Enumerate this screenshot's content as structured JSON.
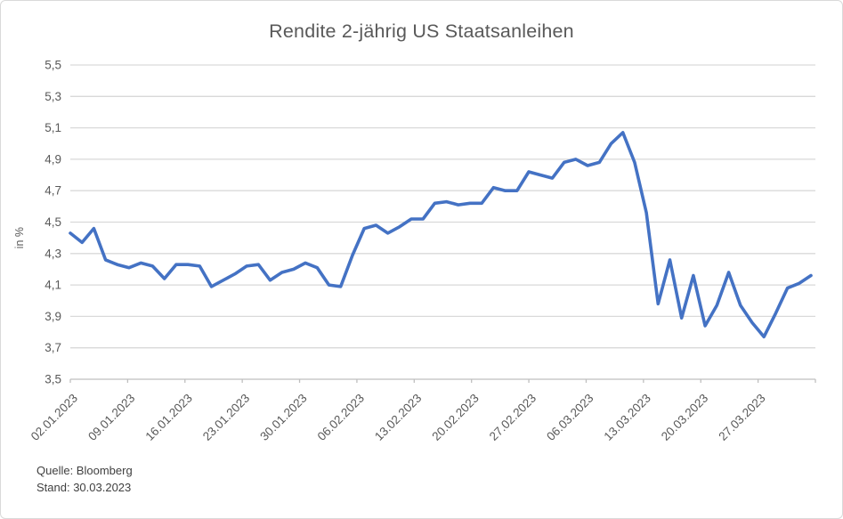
{
  "chart": {
    "title": "Rendite 2-jährig US Staatsanleihen",
    "source": "Quelle: Bloomberg",
    "stand": "Stand: 30.03.2023"
  },
  "chart_data": {
    "type": "line",
    "title": "Rendite 2-jährig US Staatsanleihen",
    "xlabel": "",
    "ylabel": "in %",
    "ylim": [
      3.5,
      5.5
    ],
    "ytick_step": 0.2,
    "ytick_labels": [
      "5,5",
      "5,3",
      "5,1",
      "4,9",
      "4,7",
      "4,5",
      "4,3",
      "4,1",
      "3,9",
      "3,7",
      "3,5"
    ],
    "xtick_labels": [
      "02.01.2023",
      "09.01.2023",
      "16.01.2023",
      "23.01.2023",
      "30.01.2023",
      "06.02.2023",
      "13.02.2023",
      "20.02.2023",
      "27.02.2023",
      "06.03.2023",
      "13.03.2023",
      "20.03.2023",
      "27.03.2023"
    ],
    "grid": true,
    "legend": false,
    "line_color": "#4472C4",
    "grid_color": "#d9d9d9",
    "axis_color": "#bfbfbf",
    "label_color": "#595959",
    "x": [
      "02.01.2023",
      "03.01.2023",
      "04.01.2023",
      "05.01.2023",
      "06.01.2023",
      "09.01.2023",
      "10.01.2023",
      "11.01.2023",
      "12.01.2023",
      "13.01.2023",
      "16.01.2023",
      "17.01.2023",
      "18.01.2023",
      "19.01.2023",
      "20.01.2023",
      "23.01.2023",
      "24.01.2023",
      "25.01.2023",
      "26.01.2023",
      "27.01.2023",
      "30.01.2023",
      "31.01.2023",
      "01.02.2023",
      "02.02.2023",
      "03.02.2023",
      "06.02.2023",
      "07.02.2023",
      "08.02.2023",
      "09.02.2023",
      "10.02.2023",
      "13.02.2023",
      "14.02.2023",
      "15.02.2023",
      "16.02.2023",
      "17.02.2023",
      "20.02.2023",
      "21.02.2023",
      "22.02.2023",
      "23.02.2023",
      "24.02.2023",
      "27.02.2023",
      "28.02.2023",
      "01.03.2023",
      "02.03.2023",
      "03.03.2023",
      "06.03.2023",
      "07.03.2023",
      "08.03.2023",
      "09.03.2023",
      "10.03.2023",
      "13.03.2023",
      "14.03.2023",
      "15.03.2023",
      "16.03.2023",
      "17.03.2023",
      "20.03.2023",
      "21.03.2023",
      "22.03.2023",
      "23.03.2023",
      "24.03.2023",
      "27.03.2023",
      "28.03.2023",
      "29.03.2023",
      "30.03.2023"
    ],
    "values": [
      4.43,
      4.37,
      4.46,
      4.26,
      4.23,
      4.21,
      4.24,
      4.22,
      4.14,
      4.23,
      4.23,
      4.22,
      4.09,
      4.13,
      4.17,
      4.22,
      4.23,
      4.13,
      4.18,
      4.2,
      4.24,
      4.21,
      4.1,
      4.09,
      4.29,
      4.46,
      4.48,
      4.43,
      4.47,
      4.52,
      4.52,
      4.62,
      4.63,
      4.61,
      4.62,
      4.62,
      4.72,
      4.7,
      4.7,
      4.82,
      4.8,
      4.78,
      4.88,
      4.9,
      4.86,
      4.88,
      5.0,
      5.07,
      4.88,
      4.56,
      3.98,
      4.26,
      3.89,
      4.16,
      3.84,
      3.97,
      4.18,
      3.97,
      3.86,
      3.77,
      3.92,
      4.08,
      4.11,
      4.16
    ]
  }
}
